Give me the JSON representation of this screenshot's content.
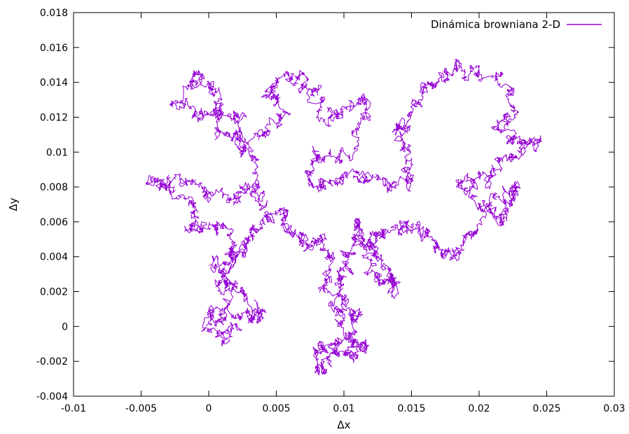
{
  "chart_data": {
    "type": "line",
    "title": "",
    "xlabel": "Δx",
    "ylabel": "Δy",
    "xlim": [
      -0.01,
      0.03
    ],
    "ylim": [
      -0.004,
      0.018
    ],
    "x_ticks": [
      "-0.01",
      "-0.005",
      "0",
      "0.005",
      "0.01",
      "0.015",
      "0.02",
      "0.025",
      "0.03"
    ],
    "y_ticks": [
      "-0.004",
      "-0.002",
      "0",
      "0.002",
      "0.004",
      "0.006",
      "0.008",
      "0.01",
      "0.012",
      "0.014",
      "0.016",
      "0.018"
    ],
    "grid": false,
    "legend_position": "top-right",
    "series": [
      {
        "name": "Dinámica browniana 2-D",
        "color": "#9400d3",
        "anchors": [
          [
            0.0,
            0.0
          ],
          [
            0.0015,
            0.0008
          ],
          [
            0.003,
            0.0004
          ],
          [
            0.004,
            0.001
          ],
          [
            0.0025,
            0.002
          ],
          [
            0.001,
            0.0025
          ],
          [
            0.0005,
            0.0035
          ],
          [
            0.002,
            0.004
          ],
          [
            0.0015,
            0.0055
          ],
          [
            0.0,
            0.006
          ],
          [
            -0.0015,
            0.0055
          ],
          [
            -0.001,
            0.0068
          ],
          [
            -0.003,
            0.008
          ],
          [
            -0.0045,
            0.0083
          ],
          [
            -0.002,
            0.0085
          ],
          [
            -0.0005,
            0.0078
          ],
          [
            0.0015,
            0.0072
          ],
          [
            0.003,
            0.008
          ],
          [
            0.004,
            0.007
          ],
          [
            0.0035,
            0.0095
          ],
          [
            0.0025,
            0.0105
          ],
          [
            0.001,
            0.011
          ],
          [
            0.0005,
            0.0125
          ],
          [
            -0.001,
            0.012
          ],
          [
            -0.0025,
            0.013
          ],
          [
            -0.001,
            0.0145
          ],
          [
            0.0,
            0.014
          ],
          [
            0.0005,
            0.0125
          ],
          [
            0.002,
            0.012
          ],
          [
            0.0025,
            0.0105
          ],
          [
            0.0045,
            0.011
          ],
          [
            0.0055,
            0.0125
          ],
          [
            0.0045,
            0.0135
          ],
          [
            0.0055,
            0.0145
          ],
          [
            0.007,
            0.014
          ],
          [
            0.008,
            0.0135
          ],
          [
            0.009,
            0.012
          ],
          [
            0.01,
            0.0125
          ],
          [
            0.0115,
            0.013
          ],
          [
            0.011,
            0.011
          ],
          [
            0.0095,
            0.0095
          ],
          [
            0.008,
            0.01
          ],
          [
            0.0075,
            0.0085
          ],
          [
            0.009,
            0.008
          ],
          [
            0.0105,
            0.009
          ],
          [
            0.012,
            0.0085
          ],
          [
            0.0135,
            0.008
          ],
          [
            0.015,
            0.0088
          ],
          [
            0.0145,
            0.01
          ],
          [
            0.014,
            0.0115
          ],
          [
            0.015,
            0.012
          ],
          [
            0.016,
            0.0135
          ],
          [
            0.017,
            0.014
          ],
          [
            0.0185,
            0.0148
          ],
          [
            0.02,
            0.0145
          ],
          [
            0.0215,
            0.014
          ],
          [
            0.0225,
            0.0125
          ],
          [
            0.0215,
            0.0115
          ],
          [
            0.0225,
            0.0105
          ],
          [
            0.0245,
            0.0108
          ],
          [
            0.023,
            0.01
          ],
          [
            0.0215,
            0.009
          ],
          [
            0.02,
            0.0085
          ],
          [
            0.0185,
            0.008
          ],
          [
            0.02,
            0.007
          ],
          [
            0.0215,
            0.006
          ],
          [
            0.0225,
            0.007
          ],
          [
            0.023,
            0.008
          ],
          [
            0.0215,
            0.0075
          ],
          [
            0.02,
            0.006
          ],
          [
            0.019,
            0.005
          ],
          [
            0.018,
            0.004
          ],
          [
            0.017,
            0.0045
          ],
          [
            0.016,
            0.0055
          ],
          [
            0.0145,
            0.006
          ],
          [
            0.013,
            0.0055
          ],
          [
            0.012,
            0.005
          ],
          [
            0.0125,
            0.004
          ],
          [
            0.0135,
            0.003
          ],
          [
            0.014,
            0.002
          ],
          [
            0.013,
            0.0025
          ],
          [
            0.012,
            0.0035
          ],
          [
            0.0115,
            0.0045
          ],
          [
            0.011,
            0.006
          ],
          [
            0.0105,
            0.0045
          ],
          [
            0.01,
            0.0035
          ],
          [
            0.0095,
            0.0025
          ],
          [
            0.01,
            0.001
          ],
          [
            0.011,
            0.0005
          ],
          [
            0.0105,
            -0.0005
          ],
          [
            0.0115,
            -0.001
          ],
          [
            0.0105,
            -0.002
          ],
          [
            0.0095,
            -0.0015
          ],
          [
            0.0085,
            -0.0025
          ],
          [
            0.008,
            -0.0018
          ],
          [
            0.009,
            -0.001
          ],
          [
            0.01,
            -0.0005
          ],
          [
            0.0095,
            0.0012
          ],
          [
            0.0085,
            0.0025
          ],
          [
            0.009,
            0.004
          ],
          [
            0.008,
            0.0048
          ],
          [
            0.007,
            0.005
          ],
          [
            0.006,
            0.0055
          ],
          [
            0.0055,
            0.0065
          ],
          [
            0.004,
            0.006
          ],
          [
            0.003,
            0.005
          ],
          [
            0.002,
            0.0045
          ],
          [
            0.0015,
            0.003
          ],
          [
            0.001,
            0.0015
          ],
          [
            0.0,
            0.0005
          ],
          [
            0.001,
            -0.0005
          ],
          [
            0.002,
            0.0
          ]
        ]
      }
    ]
  }
}
